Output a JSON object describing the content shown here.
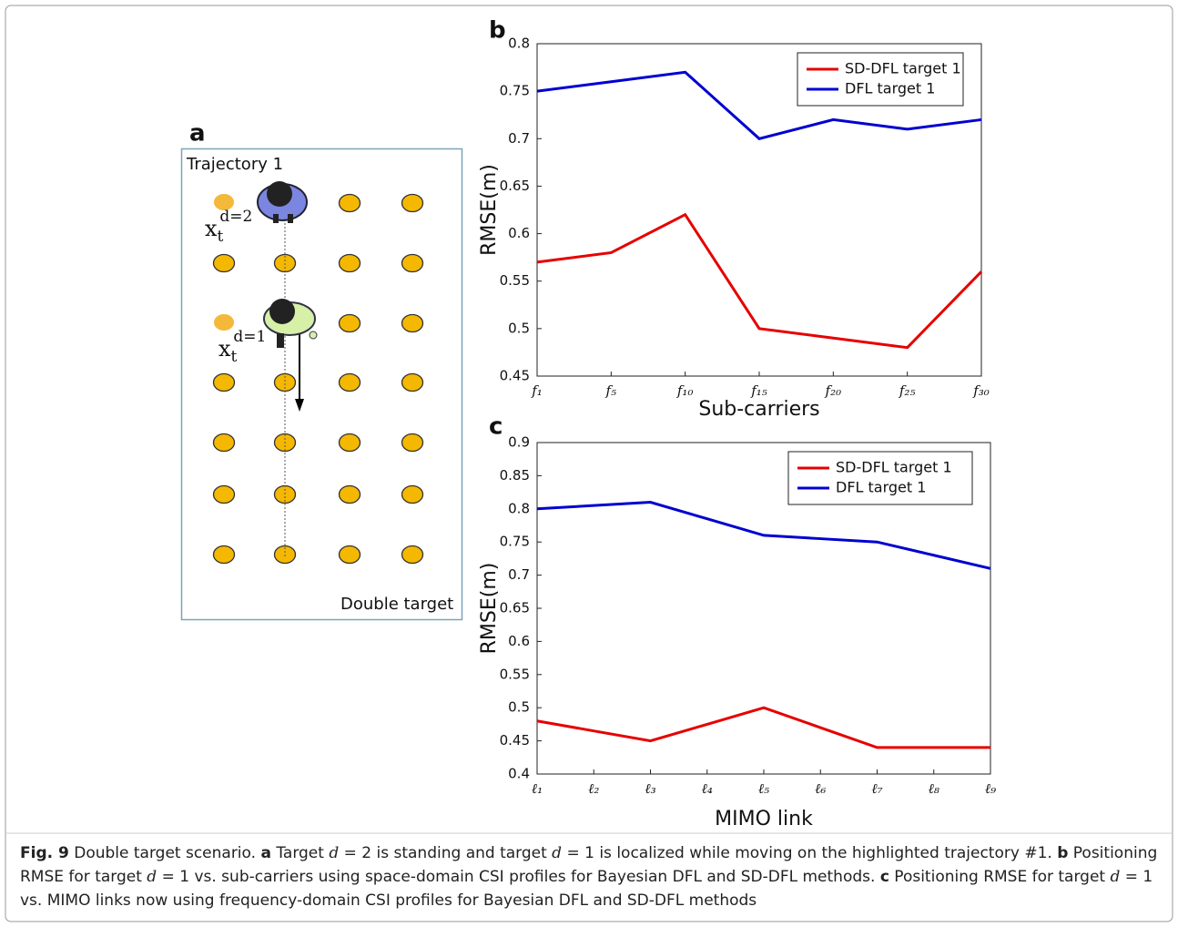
{
  "panel_a": {
    "label": "a",
    "title": "Trajectory 1",
    "note": "Double target",
    "targets": [
      {
        "base": "x",
        "sub": "t",
        "sup": "d=2"
      },
      {
        "base": "x",
        "sub": "t",
        "sup": "d=1"
      }
    ]
  },
  "chart_data": [
    {
      "type": "line",
      "label": "b",
      "y_label": "RMSE(m)",
      "x_label": "Sub-carriers",
      "categories": [
        "f₁",
        "f₅",
        "f₁₀",
        "f₁₅",
        "f₂₀",
        "f₂₅",
        "f₃₀"
      ],
      "series": [
        {
          "name": "SD-DFL target 1",
          "color": "#e60000",
          "values": [
            0.57,
            0.58,
            0.62,
            0.5,
            0.49,
            0.48,
            0.56
          ]
        },
        {
          "name": "DFL target 1",
          "color": "#0000d0",
          "values": [
            0.75,
            0.76,
            0.77,
            0.7,
            0.72,
            0.71,
            0.72
          ]
        }
      ],
      "ylim": [
        0.45,
        0.8
      ],
      "yticks": [
        0.45,
        0.5,
        0.55,
        0.6,
        0.65,
        0.7,
        0.75,
        0.8
      ],
      "legend": "upper right",
      "grid": false
    },
    {
      "type": "line",
      "label": "c",
      "y_label": "RMSE(m)",
      "x_label": "MIMO link",
      "categories": [
        "ℓ₁",
        "ℓ₂",
        "ℓ₃",
        "ℓ₄",
        "ℓ₅",
        "ℓ₆",
        "ℓ₇",
        "ℓ₈",
        "ℓ₉"
      ],
      "series": [
        {
          "name": "SD-DFL target 1",
          "color": "#e60000",
          "values": [
            0.48,
            0.465,
            0.45,
            0.475,
            0.5,
            0.47,
            0.44,
            0.44,
            0.44
          ]
        },
        {
          "name": "DFL target 1",
          "color": "#0000d0",
          "values": [
            0.8,
            0.805,
            0.81,
            0.785,
            0.76,
            0.755,
            0.75,
            0.73,
            0.71
          ]
        }
      ],
      "ylim": [
        0.4,
        0.9
      ],
      "yticks": [
        0.4,
        0.45,
        0.5,
        0.55,
        0.6,
        0.65,
        0.7,
        0.75,
        0.8,
        0.85,
        0.9
      ],
      "legend": "upper right",
      "grid": false
    }
  ],
  "caption": {
    "segments": [
      {
        "text": "Fig. 9",
        "bold": true
      },
      {
        "text": " Double target scenario. "
      },
      {
        "text": "a",
        "bold": true
      },
      {
        "text": " Target "
      },
      {
        "text": "d",
        "italic": true
      },
      {
        "text": " = 2 is standing and target "
      },
      {
        "text": "d",
        "italic": true
      },
      {
        "text": " = 1 is localized while moving on the highlighted trajectory #1. "
      },
      {
        "text": "b",
        "bold": true
      },
      {
        "text": " Positioning RMSE for target "
      },
      {
        "text": "d",
        "italic": true
      },
      {
        "text": " = 1 vs. sub-carriers using space-domain CSI profiles for Bayesian DFL and SD-DFL methods. "
      },
      {
        "text": "c",
        "bold": true
      },
      {
        "text": " Positioning RMSE for target "
      },
      {
        "text": "d",
        "italic": true
      },
      {
        "text": " = 1 vs. MIMO links now using frequency-domain CSI profiles for Bayesian DFL and SD-DFL methods"
      }
    ]
  }
}
